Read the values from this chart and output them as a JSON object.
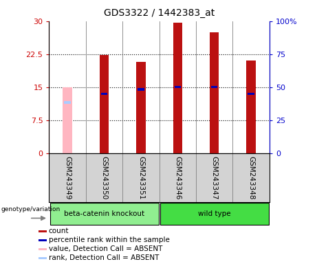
{
  "title": "GDS3322 / 1442383_at",
  "samples": [
    "GSM243349",
    "GSM243350",
    "GSM243351",
    "GSM243346",
    "GSM243347",
    "GSM243348"
  ],
  "group_labels": [
    "beta-catenin knockout",
    "wild type"
  ],
  "absent": [
    true,
    false,
    false,
    false,
    false,
    false
  ],
  "count_values": [
    15.0,
    22.3,
    20.7,
    29.7,
    27.5,
    21.0
  ],
  "rank_values": [
    11.5,
    13.5,
    14.5,
    15.0,
    15.0,
    13.5
  ],
  "ylim_left": [
    0,
    30
  ],
  "ylim_right": [
    0,
    100
  ],
  "yticks_left": [
    0,
    7.5,
    15,
    22.5,
    30
  ],
  "yticks_right": [
    0,
    25,
    50,
    75,
    100
  ],
  "ytick_labels_left": [
    "0",
    "7.5",
    "15",
    "22.5",
    "30"
  ],
  "ytick_labels_right": [
    "0",
    "25",
    "50",
    "75",
    "100%"
  ],
  "bar_width": 0.25,
  "bar_color_normal": "#BB1111",
  "bar_color_absent": "#FFB6C1",
  "rank_color_normal": "#0000BB",
  "rank_color_absent": "#AACCFF",
  "left_axis_color": "#CC0000",
  "right_axis_color": "#0000CC",
  "bg_color_label": "#D3D3D3",
  "group_color_1": "#90EE90",
  "group_color_2": "#44DD44",
  "genotype_label": "genotype/variation",
  "legend_items": [
    {
      "color": "#BB1111",
      "label": "count"
    },
    {
      "color": "#0000BB",
      "label": "percentile rank within the sample"
    },
    {
      "color": "#FFB6C1",
      "label": "value, Detection Call = ABSENT"
    },
    {
      "color": "#AACCFF",
      "label": "rank, Detection Call = ABSENT"
    }
  ]
}
